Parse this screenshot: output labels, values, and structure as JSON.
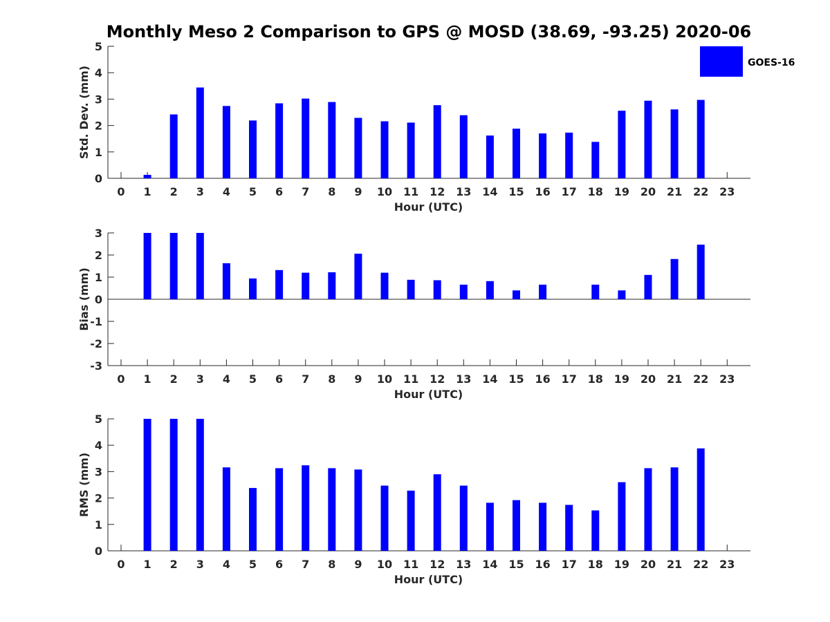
{
  "title": "Monthly Meso 2 Comparison to GPS @ MOSD (38.69, -93.25) 2020-06",
  "legend": {
    "label": "GOES-16",
    "color": "#0000ff",
    "placement": "top-right"
  },
  "chart_data": [
    {
      "type": "bar",
      "title": "Monthly Meso 2 Comparison to GPS @ MOSD (38.69, -93.25) 2020-06",
      "xlabel": "Hour (UTC)",
      "ylabel": "Std. Dev. (mm)",
      "ylim": [
        0,
        5
      ],
      "yticks": [
        "0",
        "1",
        "2",
        "3",
        "4",
        "5"
      ],
      "categories": [
        "0",
        "1",
        "2",
        "3",
        "4",
        "5",
        "6",
        "7",
        "8",
        "9",
        "10",
        "11",
        "12",
        "13",
        "14",
        "15",
        "16",
        "17",
        "18",
        "19",
        "20",
        "21",
        "22",
        "23"
      ],
      "series": [
        {
          "name": "GOES-16",
          "color": "#0000ff",
          "values": [
            null,
            0.13,
            2.42,
            3.44,
            2.74,
            2.19,
            2.84,
            3.02,
            2.89,
            2.29,
            2.16,
            2.11,
            2.77,
            2.39,
            1.62,
            1.88,
            1.7,
            1.73,
            1.38,
            2.56,
            2.94,
            2.61,
            2.97,
            null
          ]
        }
      ]
    },
    {
      "type": "bar",
      "xlabel": "Hour (UTC)",
      "ylabel": "Bias (mm)",
      "ylim": [
        -3,
        3
      ],
      "yticks": [
        "-3",
        "-2",
        "-1",
        "0",
        "1",
        "2",
        "3"
      ],
      "categories": [
        "0",
        "1",
        "2",
        "3",
        "4",
        "5",
        "6",
        "7",
        "8",
        "9",
        "10",
        "11",
        "12",
        "13",
        "14",
        "15",
        "16",
        "17",
        "18",
        "19",
        "20",
        "21",
        "22",
        "23"
      ],
      "series": [
        {
          "name": "GOES-16",
          "color": "#0000ff",
          "values": [
            null,
            3.0,
            3.0,
            3.0,
            1.63,
            0.94,
            1.32,
            1.2,
            1.22,
            2.06,
            1.2,
            0.88,
            0.86,
            0.66,
            0.82,
            0.4,
            0.66,
            null,
            0.66,
            0.4,
            1.1,
            1.82,
            2.47,
            null
          ]
        }
      ]
    },
    {
      "type": "bar",
      "xlabel": "Hour (UTC)",
      "ylabel": "RMS (mm)",
      "ylim": [
        0,
        5
      ],
      "yticks": [
        "0",
        "1",
        "2",
        "3",
        "4",
        "5"
      ],
      "categories": [
        "0",
        "1",
        "2",
        "3",
        "4",
        "5",
        "6",
        "7",
        "8",
        "9",
        "10",
        "11",
        "12",
        "13",
        "14",
        "15",
        "16",
        "17",
        "18",
        "19",
        "20",
        "21",
        "22",
        "23"
      ],
      "series": [
        {
          "name": "GOES-16",
          "color": "#0000ff",
          "values": [
            null,
            5.0,
            5.0,
            5.0,
            3.16,
            2.38,
            3.13,
            3.24,
            3.13,
            3.08,
            2.47,
            2.28,
            2.9,
            2.47,
            1.82,
            1.92,
            1.82,
            1.74,
            1.53,
            2.6,
            3.13,
            3.16,
            3.88,
            null
          ]
        }
      ]
    }
  ]
}
